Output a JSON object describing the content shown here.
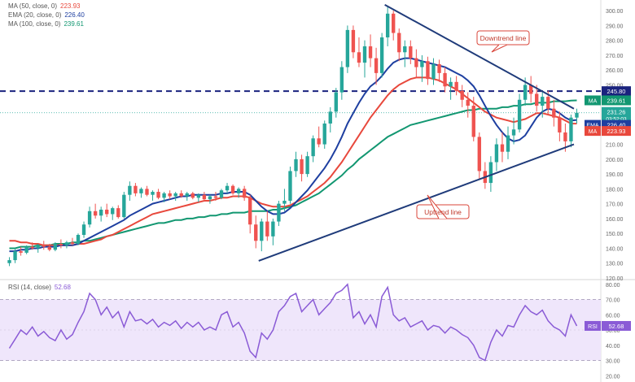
{
  "colors": {
    "up": "#26a69a",
    "down": "#ef5350",
    "ma50": "#e8483c",
    "ema20": "#1e3fa0",
    "ma100": "#129771",
    "trend": "#1f3b7a",
    "rsi": "#8a5bd6",
    "rsiband": "#efe6fb"
  },
  "legend": {
    "ma50": {
      "label": "MA (50, close, 0)",
      "value": "223.93"
    },
    "ema20": {
      "label": "EMA (20, close, 0)",
      "value": "226.40"
    },
    "ma100": {
      "label": "MA (100, close, 0)",
      "value": "239.61"
    },
    "rsi": {
      "label": "RSI (14, close)",
      "value": "52.68"
    }
  },
  "annotations": {
    "downtrend": "Downtrend line",
    "uptrend": "Uptrend line"
  },
  "badges": {
    "resistance": "245.80",
    "ma100": {
      "tag": "MA",
      "value": "239.61"
    },
    "price": {
      "value": "231.26",
      "countdown": "03:52:03"
    },
    "ema20": {
      "tag": "EMA",
      "value": "226.40"
    },
    "ma50": {
      "tag": "MA",
      "value": "223.93"
    },
    "rsi": {
      "tag": "RSI",
      "value": "52.68"
    }
  },
  "chart_data": [
    {
      "type": "candlestick",
      "y_axis_ticks": [
        300,
        290,
        280,
        270,
        260,
        250,
        240,
        230,
        220,
        210,
        200,
        190,
        180,
        170,
        160,
        150,
        140,
        130,
        120
      ],
      "ylim": [
        120,
        305
      ],
      "horizontal_level": 245.8,
      "ohlc": [
        [
          130,
          134,
          128,
          132
        ],
        [
          132,
          140,
          130,
          138
        ],
        [
          138,
          141,
          135,
          137
        ],
        [
          137,
          142,
          136,
          141
        ],
        [
          141,
          144,
          139,
          140
        ],
        [
          140,
          143,
          137,
          142
        ],
        [
          142,
          145,
          139,
          141
        ],
        [
          141,
          143,
          138,
          139
        ],
        [
          139,
          144,
          138,
          143
        ],
        [
          143,
          146,
          140,
          142
        ],
        [
          142,
          145,
          140,
          144
        ],
        [
          144,
          147,
          142,
          143
        ],
        [
          143,
          150,
          142,
          149
        ],
        [
          149,
          158,
          147,
          156
        ],
        [
          156,
          168,
          154,
          165
        ],
        [
          165,
          170,
          160,
          162
        ],
        [
          162,
          168,
          158,
          166
        ],
        [
          166,
          170,
          161,
          163
        ],
        [
          163,
          168,
          159,
          167
        ],
        [
          167,
          169,
          160,
          161
        ],
        [
          161,
          178,
          160,
          176
        ],
        [
          176,
          185,
          172,
          182
        ],
        [
          182,
          184,
          175,
          177
        ],
        [
          177,
          181,
          174,
          180
        ],
        [
          180,
          182,
          175,
          176
        ],
        [
          176,
          179,
          172,
          178
        ],
        [
          178,
          180,
          173,
          174
        ],
        [
          174,
          178,
          171,
          177
        ],
        [
          177,
          179,
          173,
          175
        ],
        [
          175,
          178,
          172,
          177
        ],
        [
          177,
          179,
          174,
          175
        ],
        [
          175,
          178,
          172,
          177
        ],
        [
          177,
          178,
          173,
          174
        ],
        [
          174,
          177,
          171,
          176
        ],
        [
          176,
          178,
          172,
          173
        ],
        [
          173,
          176,
          170,
          175
        ],
        [
          175,
          178,
          172,
          174
        ],
        [
          174,
          180,
          173,
          179
        ],
        [
          179,
          184,
          177,
          182
        ],
        [
          182,
          183,
          176,
          177
        ],
        [
          177,
          181,
          174,
          180
        ],
        [
          180,
          182,
          172,
          174
        ],
        [
          174,
          176,
          150,
          156
        ],
        [
          156,
          162,
          140,
          145
        ],
        [
          145,
          160,
          138,
          158
        ],
        [
          158,
          165,
          145,
          148
        ],
        [
          148,
          160,
          142,
          158
        ],
        [
          158,
          172,
          155,
          170
        ],
        [
          170,
          180,
          165,
          172
        ],
        [
          172,
          195,
          170,
          192
        ],
        [
          192,
          205,
          188,
          200
        ],
        [
          200,
          203,
          185,
          190
        ],
        [
          190,
          205,
          188,
          202
        ],
        [
          202,
          216,
          198,
          214
        ],
        [
          214,
          222,
          208,
          210
        ],
        [
          210,
          226,
          207,
          224
        ],
        [
          224,
          235,
          218,
          232
        ],
        [
          232,
          248,
          228,
          245
        ],
        [
          245,
          266,
          240,
          262
        ],
        [
          262,
          290,
          258,
          287
        ],
        [
          287,
          290,
          268,
          272
        ],
        [
          272,
          282,
          262,
          265
        ],
        [
          265,
          280,
          255,
          276
        ],
        [
          276,
          284,
          262,
          268
        ],
        [
          268,
          275,
          250,
          258
        ],
        [
          258,
          285,
          255,
          282
        ],
        [
          282,
          303,
          276,
          298
        ],
        [
          298,
          300,
          280,
          285
        ],
        [
          285,
          288,
          266,
          272
        ],
        [
          272,
          280,
          262,
          276
        ],
        [
          276,
          280,
          264,
          268
        ],
        [
          268,
          274,
          255,
          262
        ],
        [
          262,
          270,
          252,
          266
        ],
        [
          266,
          269,
          250,
          254
        ],
        [
          254,
          268,
          250,
          264
        ],
        [
          264,
          267,
          252,
          258
        ],
        [
          258,
          262,
          245,
          249
        ],
        [
          249,
          255,
          240,
          252
        ],
        [
          252,
          256,
          243,
          246
        ],
        [
          246,
          250,
          235,
          240
        ],
        [
          240,
          245,
          228,
          236
        ],
        [
          236,
          242,
          212,
          215
        ],
        [
          215,
          218,
          186,
          192
        ],
        [
          192,
          198,
          180,
          184
        ],
        [
          184,
          202,
          178,
          198
        ],
        [
          198,
          214,
          192,
          210
        ],
        [
          210,
          218,
          198,
          205
        ],
        [
          205,
          222,
          200,
          216
        ],
        [
          216,
          228,
          210,
          220
        ],
        [
          220,
          244,
          218,
          240
        ],
        [
          240,
          255,
          236,
          250
        ],
        [
          250,
          256,
          238,
          244
        ],
        [
          244,
          250,
          232,
          236
        ],
        [
          236,
          245,
          228,
          242
        ],
        [
          242,
          246,
          230,
          234
        ],
        [
          234,
          240,
          222,
          228
        ],
        [
          228,
          232,
          212,
          218
        ],
        [
          218,
          224,
          205,
          212
        ],
        [
          212,
          230,
          208,
          228
        ],
        [
          228,
          234,
          224,
          231.26
        ]
      ],
      "ma20": [
        138,
        138,
        139,
        139,
        140,
        140,
        141,
        141,
        141,
        142,
        142,
        142,
        143,
        145,
        147,
        149,
        151,
        153,
        155,
        157,
        159,
        162,
        164,
        166,
        168,
        170,
        171,
        172,
        173,
        174,
        175,
        175,
        176,
        176,
        176,
        176,
        176,
        177,
        177,
        178,
        178,
        178,
        176,
        172,
        168,
        165,
        163,
        163,
        164,
        167,
        171,
        175,
        179,
        184,
        189,
        194,
        200,
        207,
        215,
        224,
        231,
        238,
        244,
        249,
        252,
        256,
        261,
        265,
        267,
        268,
        268,
        267,
        266,
        265,
        264,
        263,
        262,
        260,
        258,
        256,
        253,
        249,
        243,
        236,
        229,
        223,
        218,
        214,
        212,
        213,
        216,
        222,
        228,
        232,
        234,
        233,
        231,
        228,
        226,
        226.4
      ],
      "ma50": [
        145,
        145,
        144,
        144,
        143,
        143,
        142,
        142,
        142,
        142,
        142,
        142,
        143,
        143,
        144,
        145,
        146,
        148,
        149,
        151,
        153,
        155,
        157,
        159,
        161,
        163,
        164,
        165,
        166,
        167,
        168,
        169,
        170,
        171,
        172,
        172,
        173,
        174,
        174,
        175,
        175,
        175,
        174,
        172,
        170,
        169,
        168,
        168,
        168,
        169,
        171,
        173,
        175,
        178,
        181,
        184,
        188,
        193,
        198,
        204,
        210,
        216,
        222,
        228,
        233,
        238,
        243,
        247,
        250,
        252,
        254,
        255,
        255,
        255,
        254,
        253,
        251,
        249,
        247,
        244,
        241,
        238,
        235,
        232,
        230,
        228,
        227,
        226,
        225,
        226,
        227,
        229,
        231,
        231,
        230,
        229,
        228,
        226,
        224,
        223.93
      ],
      "ma100": [
        140,
        140,
        141,
        141,
        141,
        142,
        142,
        142,
        143,
        143,
        143,
        144,
        144,
        145,
        145,
        146,
        147,
        148,
        149,
        150,
        151,
        152,
        153,
        154,
        155,
        156,
        157,
        157,
        158,
        159,
        159,
        160,
        160,
        161,
        161,
        162,
        162,
        163,
        163,
        164,
        164,
        164,
        165,
        165,
        165,
        165,
        166,
        166,
        167,
        168,
        169,
        171,
        173,
        175,
        177,
        180,
        183,
        186,
        189,
        193,
        196,
        200,
        203,
        206,
        209,
        212,
        215,
        217,
        219,
        221,
        223,
        224,
        225,
        226,
        227,
        228,
        229,
        230,
        231,
        232,
        233,
        233,
        234,
        234,
        234,
        234,
        235,
        235,
        236,
        236,
        237,
        237,
        238,
        238,
        238,
        239,
        239,
        239,
        239.5,
        239.61
      ],
      "uptrend_line": {
        "x1": 44,
        "y1": 131.5,
        "x2": 99,
        "y2": 210
      },
      "downtrend_line": {
        "x1": 66,
        "y1": 304,
        "x2": 99,
        "y2": 234
      }
    },
    {
      "type": "line",
      "name": "RSI (14, close)",
      "y_axis_ticks": [
        80,
        70,
        60,
        50,
        40,
        30,
        20
      ],
      "ylim": [
        18,
        82
      ],
      "band": [
        30,
        70
      ],
      "midline": 50,
      "values": [
        38,
        44,
        50,
        47,
        52,
        46,
        49,
        45,
        43,
        50,
        44,
        47,
        55,
        62,
        74,
        70,
        60,
        65,
        58,
        62,
        52,
        62,
        56,
        57,
        54,
        57,
        52,
        55,
        53,
        56,
        51,
        55,
        52,
        55,
        50,
        52,
        50,
        60,
        62,
        52,
        55,
        48,
        36,
        32,
        48,
        44,
        50,
        62,
        66,
        72,
        74,
        62,
        66,
        70,
        60,
        64,
        68,
        74,
        76,
        80,
        58,
        62,
        54,
        60,
        52,
        72,
        78,
        60,
        56,
        58,
        52,
        54,
        56,
        50,
        53,
        52,
        48,
        52,
        50,
        47,
        45,
        40,
        32,
        30,
        42,
        50,
        46,
        53,
        52,
        60,
        66,
        62,
        60,
        63,
        56,
        52,
        50,
        46,
        60,
        52.68
      ]
    }
  ]
}
